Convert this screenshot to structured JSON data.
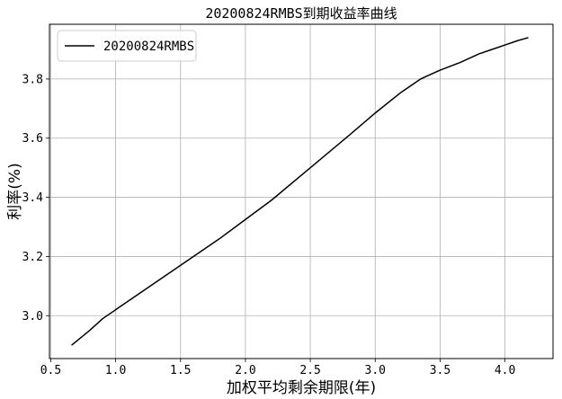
{
  "chart_data": {
    "type": "line",
    "title": "20200824RMBS到期收益率曲线",
    "xlabel": "加权平均剩余期限(年)",
    "ylabel": "利率(%)",
    "xlim": [
      0.49,
      4.37
    ],
    "ylim": [
      2.855,
      3.985
    ],
    "xticks": [
      0.5,
      1.0,
      1.5,
      2.0,
      2.5,
      3.0,
      3.5,
      4.0
    ],
    "yticks": [
      3.0,
      3.2,
      3.4,
      3.6,
      3.8
    ],
    "grid": true,
    "legend_position": "top-left",
    "series": [
      {
        "name": "20200824RMBS",
        "color": "#000000",
        "x": [
          0.66,
          0.8,
          0.9,
          1.0,
          1.2,
          1.5,
          1.8,
          2.0,
          2.2,
          2.5,
          2.8,
          3.0,
          3.2,
          3.35,
          3.4,
          3.5,
          3.65,
          3.8,
          3.9,
          4.0,
          4.1,
          4.18
        ],
        "y": [
          2.9,
          2.95,
          2.99,
          3.02,
          3.08,
          3.17,
          3.26,
          3.325,
          3.39,
          3.5,
          3.61,
          3.685,
          3.755,
          3.8,
          3.81,
          3.83,
          3.855,
          3.885,
          3.9,
          3.915,
          3.93,
          3.94
        ]
      }
    ]
  }
}
